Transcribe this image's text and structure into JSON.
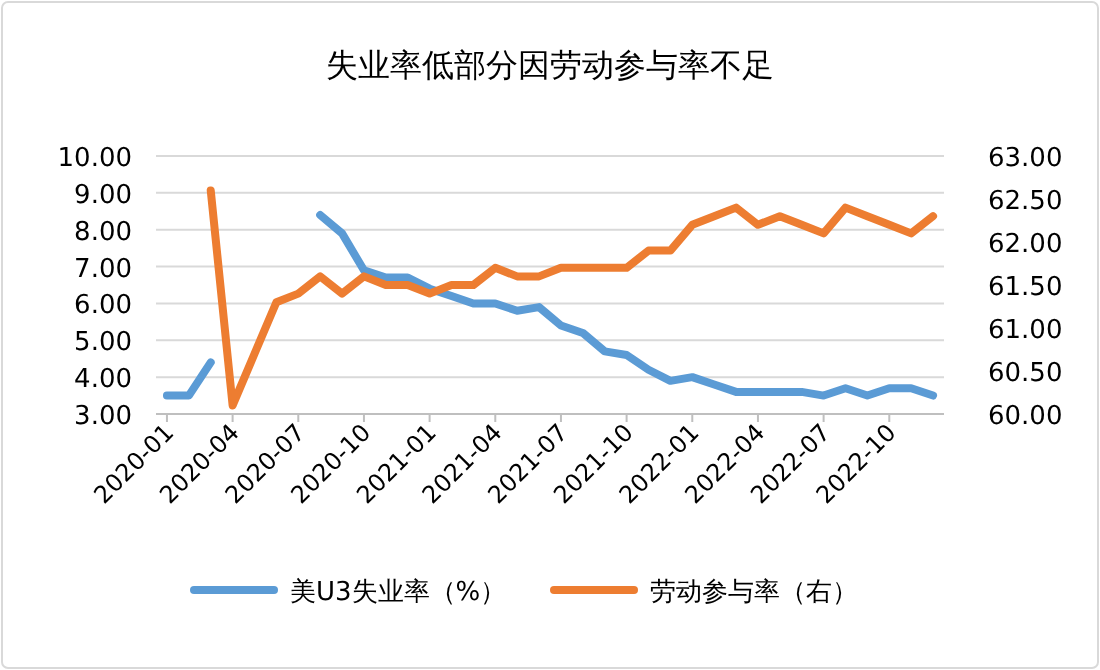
{
  "chart_data": {
    "type": "line",
    "title": "失业率低部分因劳动参与率不足",
    "categories": [
      "2020-01",
      null,
      null,
      "2020-04",
      null,
      null,
      "2020-07",
      null,
      null,
      "2020-10",
      null,
      null,
      "2021-01",
      null,
      null,
      "2021-04",
      null,
      null,
      "2021-07",
      null,
      null,
      "2021-10",
      null,
      null,
      "2022-01",
      null,
      null,
      "2022-04",
      null,
      null,
      "2022-07",
      null,
      null,
      "2022-10",
      null,
      null
    ],
    "series": [
      {
        "name": "美U3失业率（%）",
        "color": "#5b9bd5",
        "values": [
          3.5,
          3.5,
          4.4,
          null,
          null,
          null,
          null,
          8.4,
          7.9,
          6.9,
          6.7,
          6.7,
          6.4,
          6.2,
          6.0,
          6.0,
          5.8,
          5.9,
          5.4,
          5.2,
          4.7,
          4.6,
          4.2,
          3.9,
          4.0,
          3.8,
          3.6,
          3.6,
          3.6,
          3.6,
          3.5,
          3.7,
          3.5,
          3.7,
          3.7,
          3.5
        ]
      },
      {
        "name": "劳动参与率（右）",
        "color": "#ed7d31",
        "axis": "y2",
        "values": [
          null,
          null,
          62.6,
          60.1,
          60.7,
          61.3,
          61.4,
          61.6,
          61.4,
          61.6,
          61.5,
          61.5,
          61.4,
          61.5,
          61.5,
          61.7,
          61.6,
          61.6,
          61.7,
          61.7,
          61.7,
          61.7,
          61.9,
          61.9,
          62.2,
          62.3,
          62.4,
          62.2,
          62.3,
          62.2,
          62.1,
          62.4,
          62.3,
          62.2,
          62.1,
          62.3
        ]
      }
    ],
    "ylim": [
      3,
      10
    ],
    "yticks": [
      {
        "value": 3,
        "label": "3.00"
      },
      {
        "value": 4,
        "label": "4.00"
      },
      {
        "value": 5,
        "label": "5.00"
      },
      {
        "value": 6,
        "label": "6.00"
      },
      {
        "value": 7,
        "label": "7.00"
      },
      {
        "value": 8,
        "label": "8.00"
      },
      {
        "value": 9,
        "label": "9.00"
      },
      {
        "value": 10,
        "label": "10.00"
      }
    ],
    "y2lim": [
      60,
      63
    ],
    "y2ticks": [
      {
        "value": 60,
        "label": "60.00"
      },
      {
        "value": 60.5,
        "label": "60.50"
      },
      {
        "value": 61,
        "label": "61.00"
      },
      {
        "value": 61.5,
        "label": "61.50"
      },
      {
        "value": 62,
        "label": "62.00"
      },
      {
        "value": 62.5,
        "label": "62.50"
      },
      {
        "value": 63,
        "label": "63.00"
      }
    ],
    "grid": "y",
    "legend": "bottom",
    "marker": "none",
    "line_style": "solid"
  }
}
